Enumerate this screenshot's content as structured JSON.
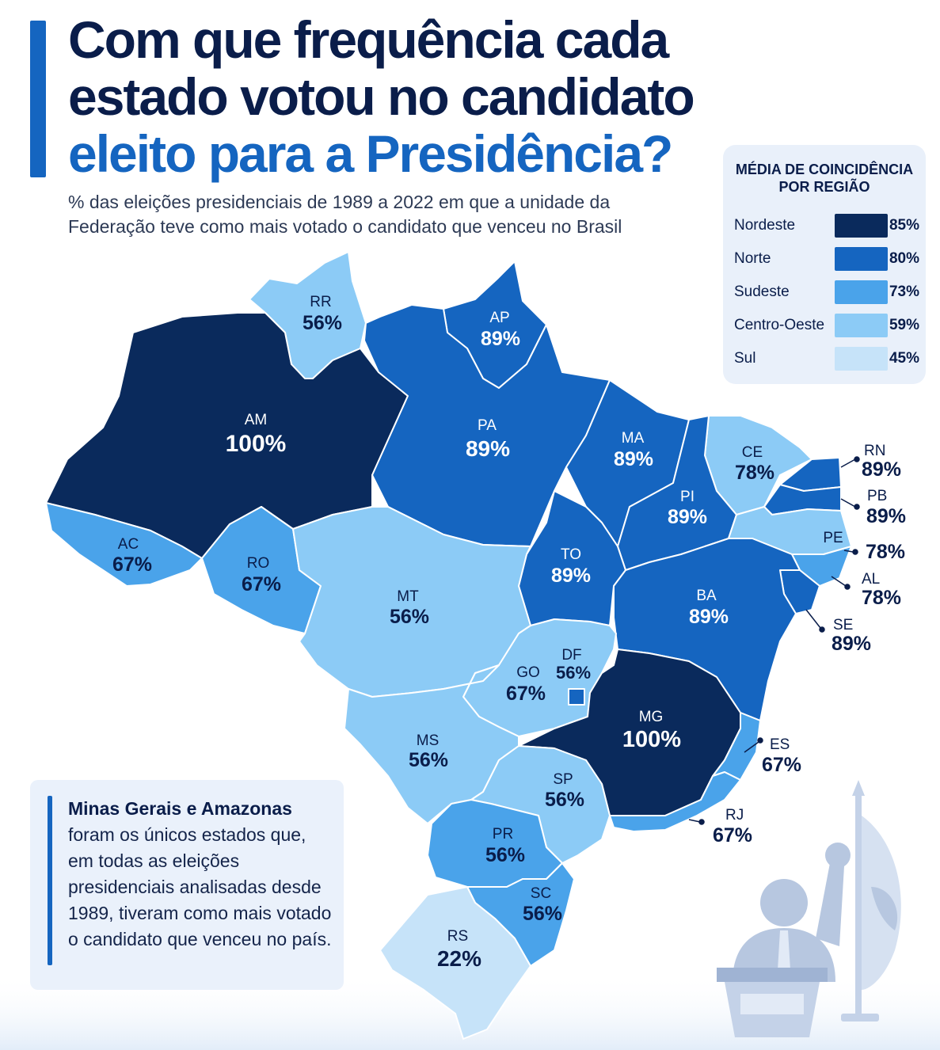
{
  "title": {
    "line1": "Com que frequência cada",
    "line2": "estado votou no candidato",
    "line3": "eleito para a Presidência?"
  },
  "subtitle": "% das eleições presidenciais de 1989 a 2022 em que a unidade da Federação teve como mais votado o candidato que venceu no Brasil",
  "colors": {
    "dark": "#0a2a5c",
    "strong": "#1565c0",
    "mid": "#4aa3ea",
    "light": "#8ccbf6",
    "pale": "#c6e3f9"
  },
  "states": [
    {
      "abbr": "RR",
      "value": "56%",
      "region": "Norte"
    },
    {
      "abbr": "AP",
      "value": "89%",
      "region": "Norte"
    },
    {
      "abbr": "AM",
      "value": "100%",
      "region": "Norte"
    },
    {
      "abbr": "PA",
      "value": "89%",
      "region": "Norte"
    },
    {
      "abbr": "MA",
      "value": "89%",
      "region": "Nordeste"
    },
    {
      "abbr": "CE",
      "value": "78%",
      "region": "Nordeste"
    },
    {
      "abbr": "RN",
      "value": "89%",
      "region": "Nordeste"
    },
    {
      "abbr": "PB",
      "value": "89%",
      "region": "Nordeste"
    },
    {
      "abbr": "PI",
      "value": "89%",
      "region": "Nordeste"
    },
    {
      "abbr": "PE",
      "value": "78%",
      "region": "Nordeste"
    },
    {
      "abbr": "AL",
      "value": "78%",
      "region": "Nordeste"
    },
    {
      "abbr": "SE",
      "value": "89%",
      "region": "Nordeste"
    },
    {
      "abbr": "AC",
      "value": "67%",
      "region": "Norte"
    },
    {
      "abbr": "RO",
      "value": "67%",
      "region": "Norte"
    },
    {
      "abbr": "TO",
      "value": "89%",
      "region": "Norte"
    },
    {
      "abbr": "MT",
      "value": "56%",
      "region": "Centro-Oeste"
    },
    {
      "abbr": "BA",
      "value": "89%",
      "region": "Nordeste"
    },
    {
      "abbr": "DF",
      "value": "56%",
      "region": "Centro-Oeste"
    },
    {
      "abbr": "GO",
      "value": "67%",
      "region": "Centro-Oeste"
    },
    {
      "abbr": "MG",
      "value": "100%",
      "region": "Sudeste"
    },
    {
      "abbr": "MS",
      "value": "56%",
      "region": "Centro-Oeste"
    },
    {
      "abbr": "ES",
      "value": "67%",
      "region": "Sudeste"
    },
    {
      "abbr": "SP",
      "value": "56%",
      "region": "Sudeste"
    },
    {
      "abbr": "RJ",
      "value": "67%",
      "region": "Sudeste"
    },
    {
      "abbr": "PR",
      "value": "56%",
      "region": "Sul"
    },
    {
      "abbr": "SC",
      "value": "56%",
      "region": "Sul"
    },
    {
      "abbr": "RS",
      "value": "22%",
      "region": "Sul"
    }
  ],
  "legend": {
    "title_line1": "MÉDIA DE COINCIDÊNCIA",
    "title_line2": "POR REGIÃO",
    "items": [
      {
        "region": "Nordeste",
        "value": "85%",
        "color": "#0a2a5c"
      },
      {
        "region": "Norte",
        "value": "80%",
        "color": "#1565c0"
      },
      {
        "region": "Sudeste",
        "value": "73%",
        "color": "#4aa3ea"
      },
      {
        "region": "Centro-Oeste",
        "value": "59%",
        "color": "#8ccbf6"
      },
      {
        "region": "Sul",
        "value": "45%",
        "color": "#c6e3f9"
      }
    ]
  },
  "note": {
    "bold": "Minas Gerais e Amazonas",
    "text": "foram os únicos estados que, em todas as eleições presidenciais analisadas desde 1989, tiveram como mais votado o candidato que venceu no país."
  },
  "illustration": "politician-at-podium-icon"
}
